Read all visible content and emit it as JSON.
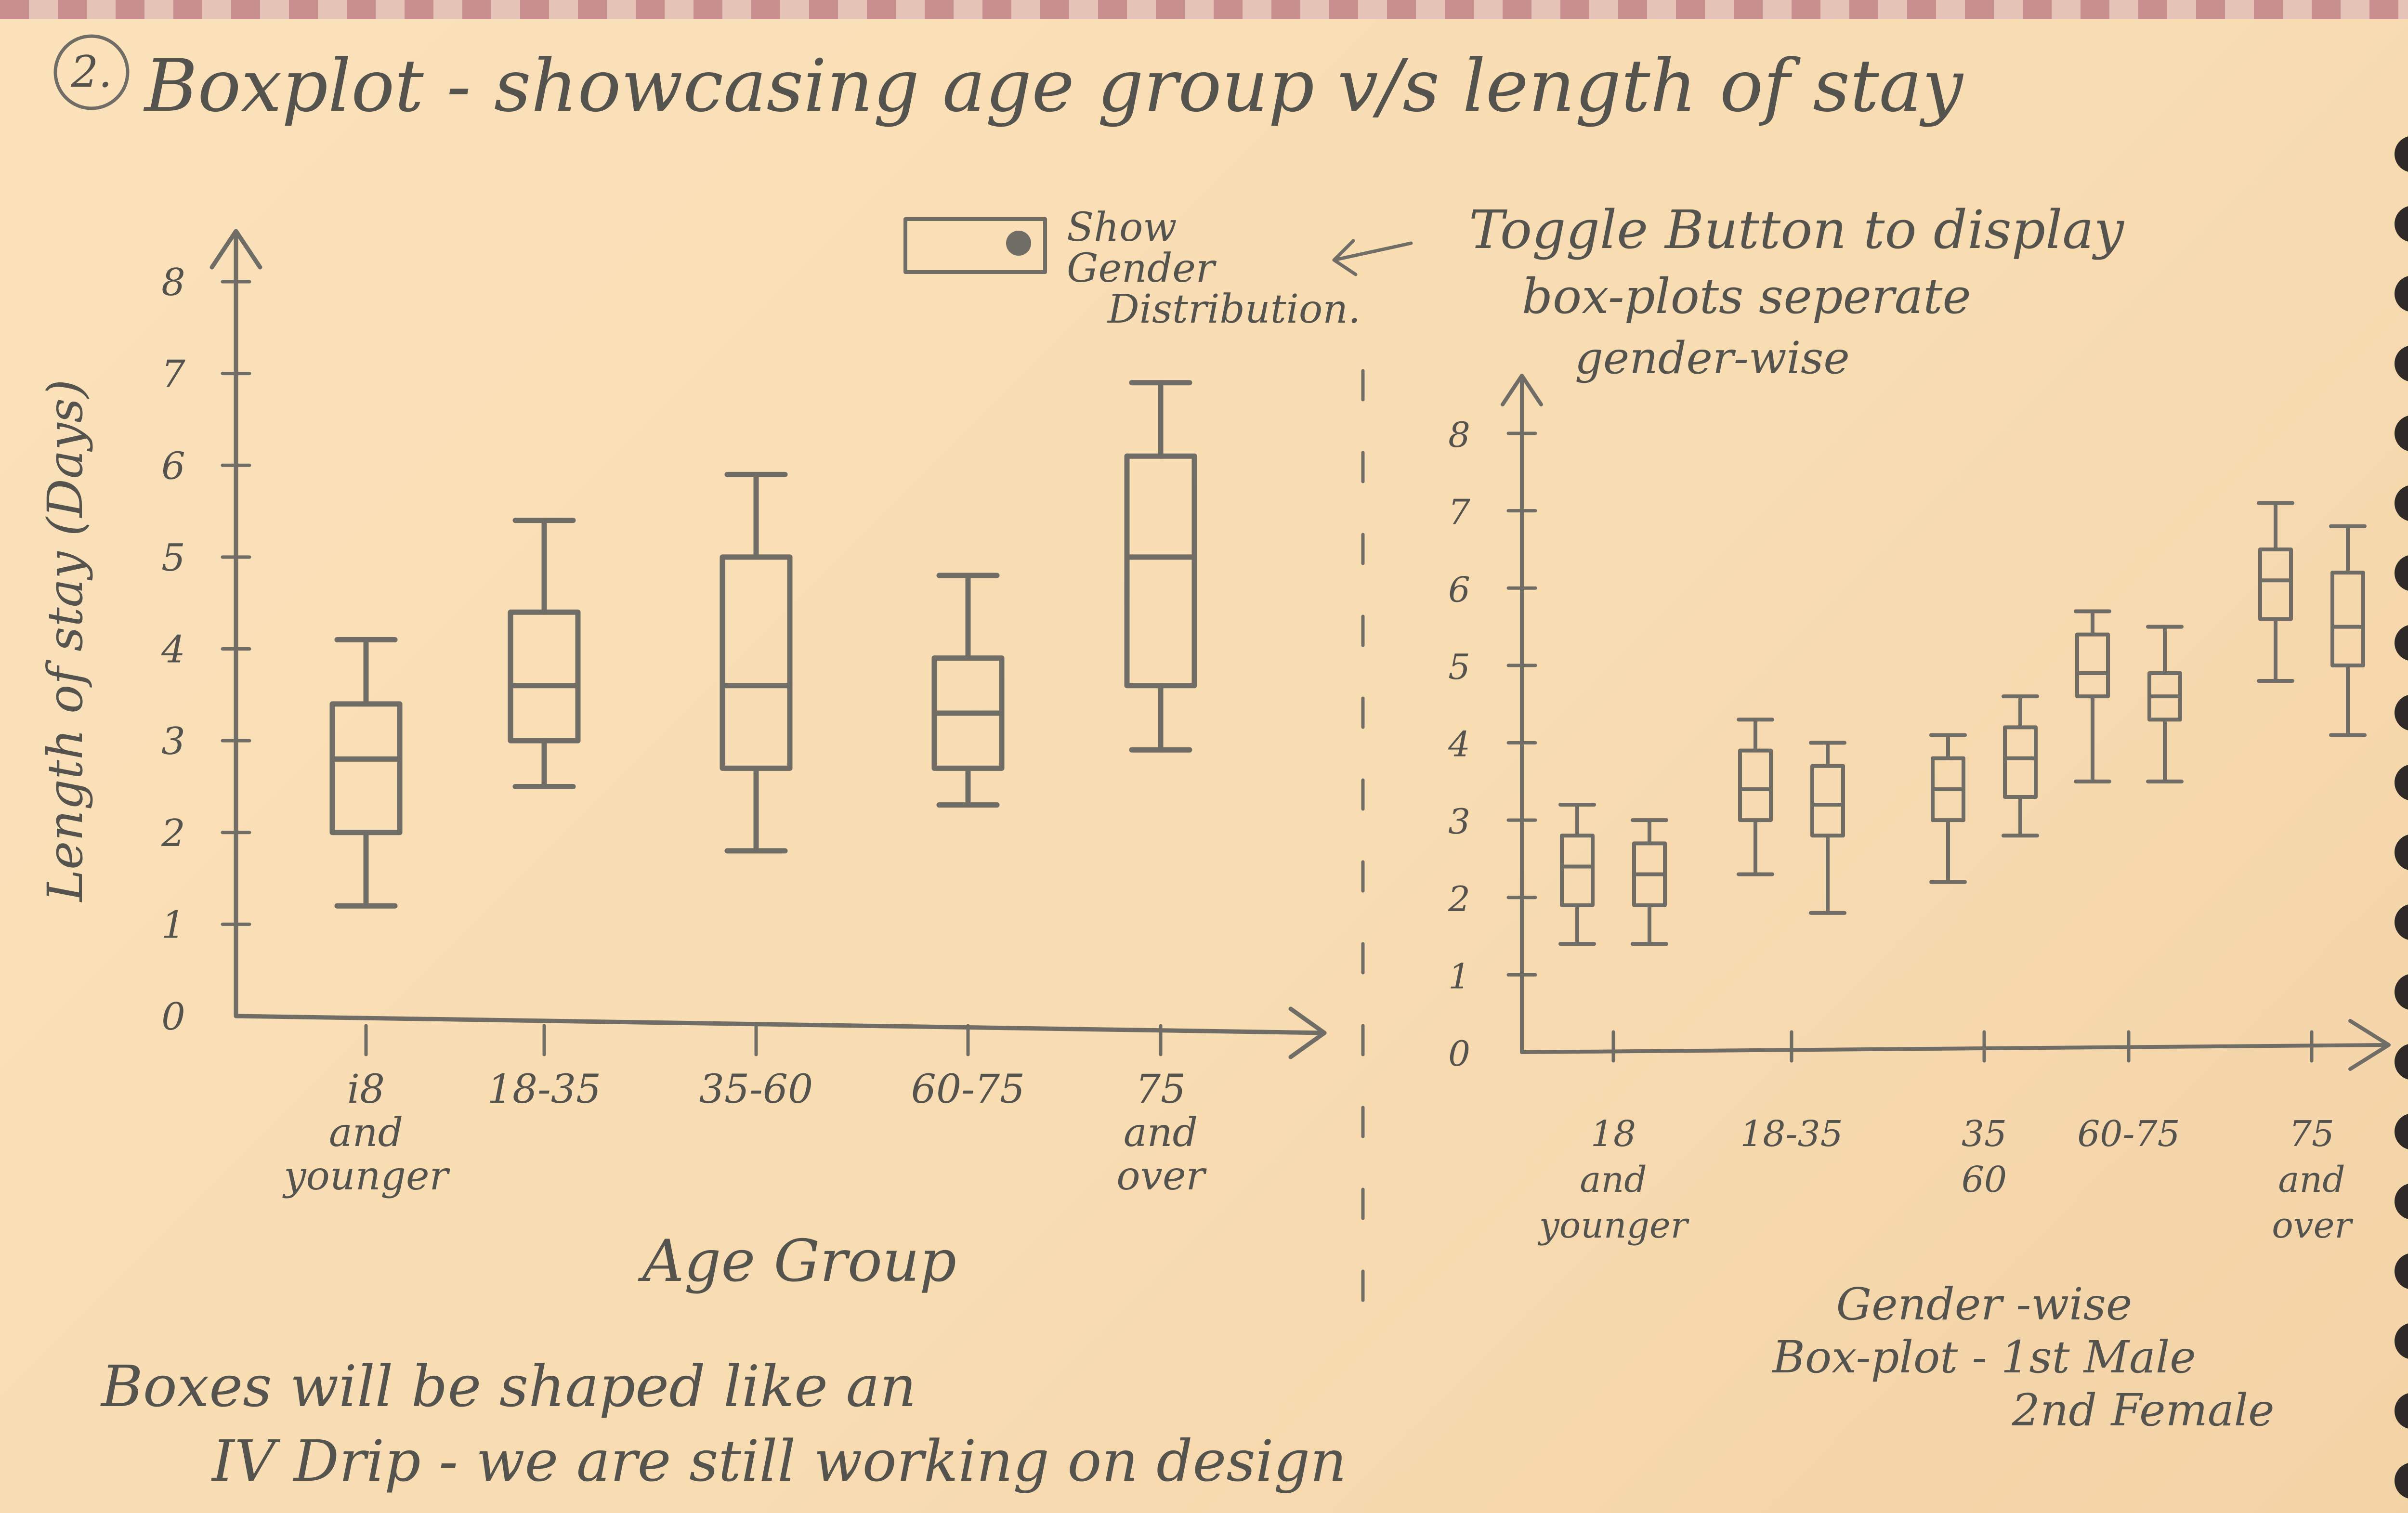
{
  "header": {
    "number": "2.",
    "title": "Boxplot - showcasing age group v/s length of stay"
  },
  "toggle": {
    "label_lines": [
      "Show",
      "Gender",
      "Distribution."
    ],
    "arrow_note_lines": [
      "Toggle Button to display",
      "box-plots seperate",
      "gender-wise"
    ]
  },
  "chart_data": [
    {
      "type": "boxplot",
      "xlabel": "Age Group",
      "ylabel": "Length of stay (Days)",
      "ylim": [
        0,
        8
      ],
      "y_ticks": [
        "0",
        "1",
        "2",
        "3",
        "4",
        "5",
        "6",
        "7",
        "8"
      ],
      "categories": [
        "18 and younger",
        "18-35",
        "35-60",
        "60-75",
        "75 and over"
      ],
      "category_lines": [
        [
          "i8",
          "and",
          "younger"
        ],
        [
          "18-35"
        ],
        [
          "35-60"
        ],
        [
          "60-75"
        ],
        [
          "75",
          "and",
          "over"
        ]
      ],
      "boxes": [
        {
          "min": 1.2,
          "q1": 2.0,
          "median": 2.8,
          "q3": 3.4,
          "max": 4.1
        },
        {
          "min": 2.5,
          "q1": 3.0,
          "median": 3.6,
          "q3": 4.4,
          "max": 5.4
        },
        {
          "min": 1.8,
          "q1": 2.7,
          "median": 3.6,
          "q3": 5.0,
          "max": 5.9
        },
        {
          "min": 2.3,
          "q1": 2.7,
          "median": 3.3,
          "q3": 3.9,
          "max": 4.8
        },
        {
          "min": 2.9,
          "q1": 3.6,
          "median": 5.0,
          "q3": 6.1,
          "max": 6.9
        }
      ]
    },
    {
      "type": "boxplot",
      "xlabel": "",
      "ylabel": "",
      "ylim": [
        0,
        8
      ],
      "y_ticks": [
        "0",
        "1",
        "2",
        "3",
        "4",
        "5",
        "6",
        "7",
        "8"
      ],
      "categories": [
        "18 and younger",
        "18-35",
        "35-60",
        "60-75",
        "75 and over"
      ],
      "category_lines": [
        [
          "18",
          "and",
          "younger"
        ],
        [
          "18-35"
        ],
        [
          "35",
          "60"
        ],
        [
          "60-75"
        ],
        [
          "75",
          "and",
          "over"
        ]
      ],
      "series": [
        {
          "boxes": [
            {
              "min": 1.4,
              "q1": 1.9,
              "median": 2.4,
              "q3": 2.8,
              "max": 3.2
            },
            {
              "min": 2.3,
              "q1": 3.0,
              "median": 3.4,
              "q3": 3.9,
              "max": 4.3
            },
            {
              "min": 2.2,
              "q1": 3.0,
              "median": 3.4,
              "q3": 3.8,
              "max": 4.1
            },
            {
              "min": 3.5,
              "q1": 4.6,
              "median": 4.9,
              "q3": 5.4,
              "max": 5.7
            },
            {
              "min": 4.8,
              "q1": 5.6,
              "median": 6.1,
              "q3": 6.5,
              "max": 7.1
            }
          ]
        },
        {
          "boxes": [
            {
              "min": 1.4,
              "q1": 1.9,
              "median": 2.3,
              "q3": 2.7,
              "max": 3.0
            },
            {
              "min": 1.8,
              "q1": 2.8,
              "median": 3.2,
              "q3": 3.7,
              "max": 4.0
            },
            {
              "min": 2.8,
              "q1": 3.3,
              "median": 3.8,
              "q3": 4.2,
              "max": 4.6
            },
            {
              "min": 3.5,
              "q1": 4.3,
              "median": 4.6,
              "q3": 4.9,
              "max": 5.5
            },
            {
              "min": 4.1,
              "q1": 5.0,
              "median": 5.5,
              "q3": 6.2,
              "max": 6.8
            }
          ]
        }
      ],
      "subtitle_lines": [
        "Gender -wise",
        "Box-plot - 1st Male",
        "2nd Female"
      ]
    }
  ],
  "footer_note_lines": [
    "Boxes will be shaped like an",
    "IV Drip - we are still working on design"
  ]
}
